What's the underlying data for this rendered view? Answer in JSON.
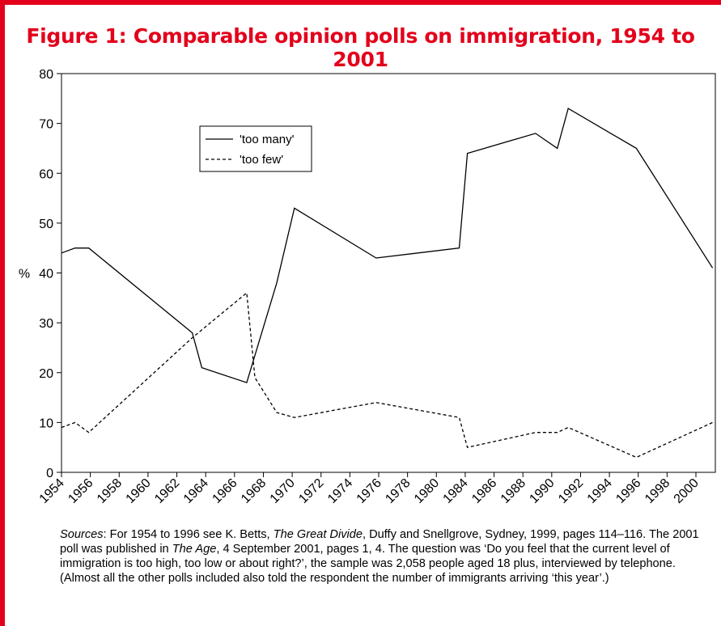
{
  "title": "Figure 1: Comparable opinion polls on immigration, 1954 to 2001",
  "colors": {
    "accent": "#e3001b",
    "line": "#000000"
  },
  "chart_data": {
    "type": "line",
    "ylabel": "%",
    "ylim": [
      0,
      80
    ],
    "xlim": [
      1954,
      2002
    ],
    "y_ticks": [
      0,
      10,
      20,
      30,
      40,
      50,
      60,
      70,
      80
    ],
    "x_ticks": [
      "1954",
      "1956",
      "1958",
      "1960",
      "1962",
      "1964",
      "1966",
      "1968",
      "1970",
      "1972",
      "1974",
      "1976",
      "1978",
      "1980",
      "1984",
      "1986",
      "1988",
      "1990",
      "1992",
      "1994",
      "1996",
      "1998",
      "2000"
    ],
    "legend_position": "upper-left-center",
    "grid": false,
    "series": [
      {
        "name": "'too many'",
        "style": "solid",
        "x": [
          1954,
          1955,
          1956,
          1963.6,
          1964.3,
          1967.6,
          1969.8,
          1971.1,
          1977.1,
          1983.2,
          1983.8,
          1988.8,
          1990.4,
          1991.2,
          1996.2,
          2001.8
        ],
        "y": [
          44,
          45,
          45,
          28,
          21,
          18,
          38,
          53,
          43,
          45,
          64,
          68,
          65,
          73,
          65,
          41
        ]
      },
      {
        "name": "'too few'",
        "style": "dashed",
        "x": [
          1954,
          1955,
          1956,
          1963.6,
          1967.6,
          1968.2,
          1969.8,
          1971.1,
          1977.1,
          1983.2,
          1983.8,
          1988.8,
          1990.4,
          1991.2,
          1996.2,
          2001.8
        ],
        "y": [
          9,
          10,
          8,
          27,
          36,
          19,
          12,
          11,
          14,
          11,
          5,
          8,
          8,
          9,
          3,
          10
        ]
      }
    ]
  },
  "sources": {
    "label": "Sources",
    "p1": ": For 1954 to 1996 see K. Betts, ",
    "book": "The Great Divide",
    "p2": ", Duffy and Snellgrove, Sydney, 1999, pages 114–116. The 2001 poll was published in ",
    "paper": "The Age",
    "p3": ", 4 September 2001, pages 1, 4. The question was ‘Do you feel that the current level of immigration is too high, too low or about right?’, the sample was 2,058 people aged 18 plus, interviewed by telephone. (Almost all the other polls included also told the respondent the number of immigrants arriving ‘this year’.)"
  }
}
